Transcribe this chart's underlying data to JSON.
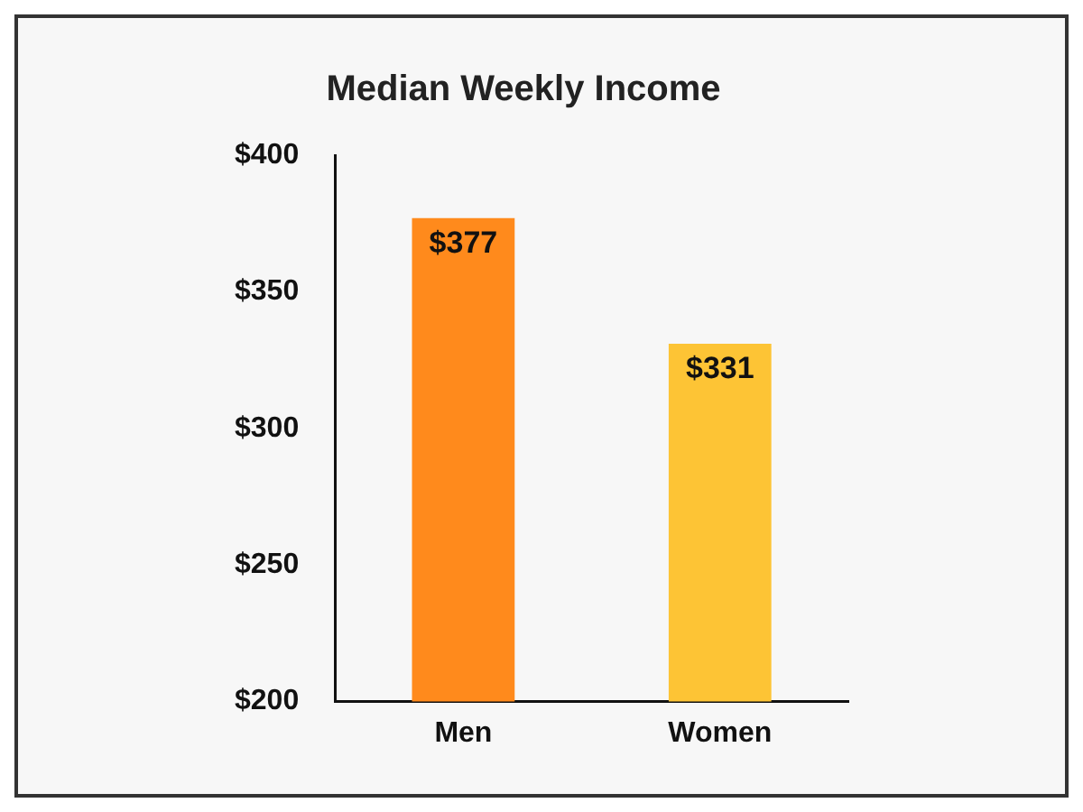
{
  "chart_data": {
    "type": "bar",
    "title": "Median Weekly Income",
    "categories": [
      "Men",
      "Women"
    ],
    "values": [
      377,
      331
    ],
    "colors": [
      "#ff8a1c",
      "#fdc435"
    ],
    "value_labels": [
      "$377",
      "$331"
    ],
    "ylim": [
      200,
      400
    ],
    "yticks": [
      {
        "value": 200,
        "label": "$200"
      },
      {
        "value": 250,
        "label": "$250"
      },
      {
        "value": 300,
        "label": "$300"
      },
      {
        "value": 350,
        "label": "$350"
      },
      {
        "value": 400,
        "label": "$400"
      }
    ],
    "grid": false,
    "legend": false
  }
}
